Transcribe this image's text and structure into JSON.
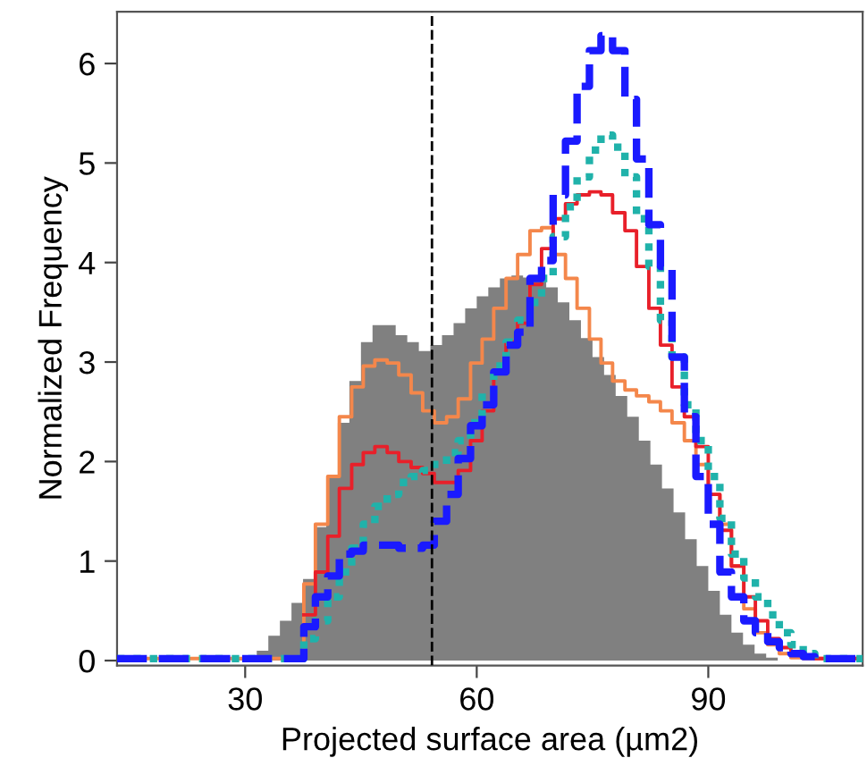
{
  "chart_data": {
    "type": "histogram",
    "xlabel": "Projected surface area (µm2)",
    "ylabel": "Normalized Frequency",
    "bins": [
      28.5,
      30,
      31.5,
      33,
      34.5,
      36,
      37.5,
      39,
      40.5,
      42,
      43.5,
      45,
      46.5,
      48,
      49.5,
      51,
      52.5,
      54,
      55.5,
      57,
      58.5,
      60,
      61.5,
      63,
      64.5,
      66,
      67.5,
      69,
      70.5,
      72,
      73.5,
      75,
      76.5,
      78,
      79.5,
      81,
      82.5,
      84,
      85.5,
      87,
      88.5,
      90,
      91.5,
      93,
      94.5,
      96,
      97.5,
      99
    ],
    "values": [
      0.03,
      0.05,
      0.1,
      0.25,
      0.4,
      0.58,
      0.82,
      1.34,
      1.85,
      2.39,
      2.81,
      3.2,
      3.37,
      3.37,
      3.27,
      3.2,
      3.11,
      3.17,
      3.27,
      3.39,
      3.54,
      3.66,
      3.75,
      3.84,
      3.87,
      3.85,
      3.84,
      3.75,
      3.6,
      3.42,
      3.24,
      3.05,
      2.87,
      2.66,
      2.45,
      2.21,
      1.97,
      1.73,
      1.49,
      1.22,
      0.95,
      0.7,
      0.46,
      0.28,
      0.16,
      0.07,
      0.03
    ],
    "color": "#808080",
    "x": [
      13.4,
      37.6,
      39.1,
      40.7,
      42.2,
      43.8,
      45.3,
      46.8,
      48.4,
      49.9,
      51.5,
      53.0,
      54.5,
      56.1,
      57.6,
      59.2,
      60.7,
      62.2,
      63.8,
      65.3,
      66.9,
      68.4,
      69.9,
      71.5,
      73.0,
      74.6,
      76.1,
      77.6,
      79.2,
      80.7,
      82.3,
      83.8,
      85.3,
      86.9,
      88.4,
      90.0,
      91.5,
      93.0,
      94.6,
      96.1,
      97.7,
      99.2,
      100.7,
      102.3,
      103.8,
      110
    ],
    "series": [
      {
        "type": "step",
        "color": "#f4874b",
        "line_style": "solid",
        "values": [
          0.02,
          0.77,
          1.37,
          1.85,
          2.45,
          2.75,
          2.96,
          3.02,
          2.99,
          2.87,
          2.69,
          2.51,
          2.39,
          2.45,
          2.63,
          2.99,
          3.23,
          3.54,
          3.84,
          4.08,
          4.32,
          4.35,
          4.08,
          3.84,
          3.54,
          3.23,
          2.99,
          2.81,
          2.72,
          2.66,
          2.6,
          2.51,
          2.39,
          2.21,
          1.97,
          1.67,
          1.37,
          0.95,
          0.52,
          0.28,
          0.16,
          0.07,
          0.03,
          0.02,
          0.02,
          0.02
        ]
      },
      {
        "type": "step",
        "color": "#e8202a",
        "line_style": "solid",
        "values": [
          null,
          0.46,
          0.89,
          1.25,
          1.73,
          1.97,
          2.09,
          2.15,
          2.09,
          2.0,
          1.94,
          1.88,
          1.79,
          1.79,
          1.91,
          2.21,
          2.51,
          2.9,
          3.2,
          3.39,
          3.78,
          4.14,
          4.44,
          4.59,
          4.68,
          4.71,
          4.68,
          4.5,
          4.32,
          3.96,
          3.54,
          3.17,
          2.75,
          2.45,
          2.15,
          1.67,
          1.31,
          0.95,
          0.64,
          0.4,
          0.22,
          0.13,
          0.07,
          0.03,
          0.02,
          0.02
        ]
      },
      {
        "type": "step",
        "color": "#20b2aa",
        "line_style": "dotted",
        "values": [
          0.02,
          0.22,
          0.4,
          0.64,
          0.89,
          1.13,
          1.37,
          1.55,
          1.67,
          1.79,
          1.85,
          1.91,
          1.97,
          2.09,
          2.21,
          2.39,
          2.69,
          2.96,
          3.2,
          3.42,
          3.6,
          3.84,
          4.26,
          4.56,
          4.86,
          5.13,
          5.28,
          5.16,
          4.86,
          4.44,
          3.96,
          3.42,
          3.05,
          2.57,
          2.21,
          1.85,
          1.43,
          1.07,
          0.83,
          0.64,
          0.46,
          0.28,
          0.16,
          0.07,
          0.02,
          0.02
        ]
      },
      {
        "type": "step",
        "color": "#1a1aff",
        "line_style": "dashed",
        "values": [
          0.02,
          0.34,
          0.64,
          0.85,
          1.07,
          1.1,
          1.16,
          1.16,
          1.16,
          1.13,
          1.13,
          1.16,
          1.4,
          1.67,
          2.03,
          2.36,
          2.57,
          2.9,
          3.17,
          3.3,
          3.84,
          4.02,
          4.68,
          5.22,
          5.77,
          6.13,
          6.28,
          6.13,
          5.64,
          5.04,
          4.38,
          3.96,
          3.05,
          2.45,
          1.85,
          1.37,
          0.89,
          0.64,
          0.4,
          0.28,
          0.19,
          0.13,
          0.07,
          0.04,
          0.02,
          0.02
        ]
      }
    ],
    "ref_lines": [
      {
        "axis": "x",
        "value": 54.2,
        "color": "#000000",
        "line_style": "dashed"
      }
    ],
    "xlim": [
      13.4,
      110
    ],
    "ylim": [
      -0.05,
      6.52
    ],
    "xticks": [
      30,
      60,
      90
    ],
    "yticks": [
      0,
      1,
      2,
      3,
      4,
      5,
      6
    ]
  }
}
